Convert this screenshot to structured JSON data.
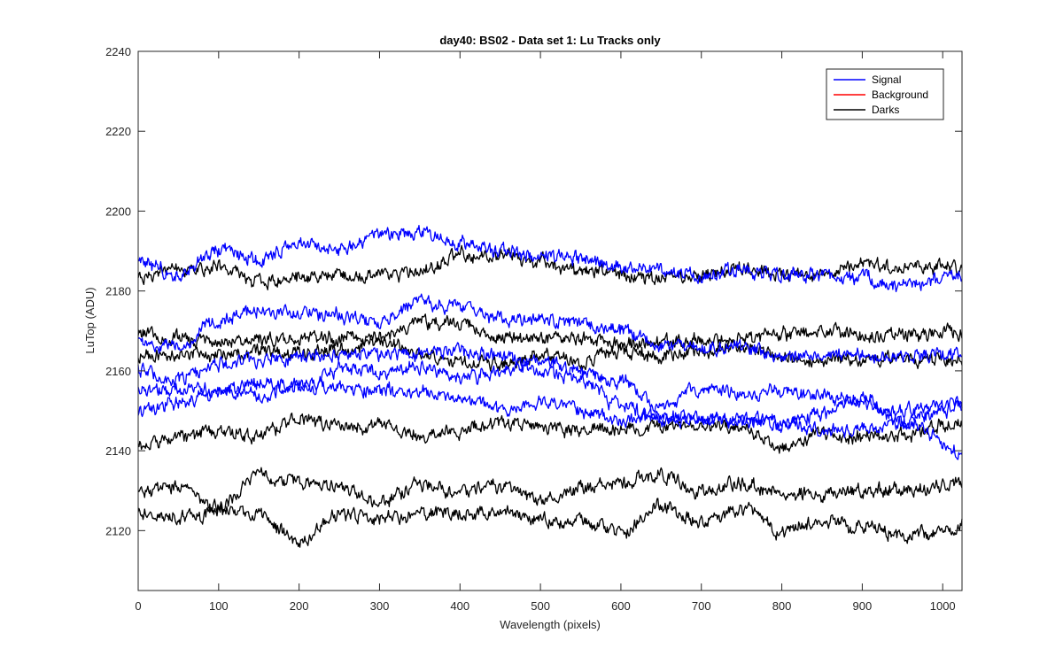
{
  "chart_data": {
    "type": "line",
    "title": "day40: BS02 - Data set 1: Lu Tracks only",
    "xlabel": "Wavelength (pixels)",
    "ylabel": "LuTop (ADU)",
    "xlim": [
      0,
      1024
    ],
    "ylim": [
      2105,
      2240
    ],
    "x_ticks": [
      0,
      100,
      200,
      300,
      400,
      500,
      600,
      700,
      800,
      900,
      1000
    ],
    "y_ticks": [
      2120,
      2140,
      2160,
      2180,
      2200,
      2220,
      2240
    ],
    "grid": false,
    "legend": {
      "placement": "top-right",
      "entries": [
        "Signal",
        "Background",
        "Darks"
      ]
    },
    "colors": {
      "Signal": "#0000ff",
      "Background": "#ff0000",
      "Darks": "#000000"
    },
    "x": [
      0,
      50,
      100,
      150,
      200,
      250,
      300,
      350,
      400,
      450,
      500,
      550,
      600,
      650,
      700,
      750,
      800,
      850,
      900,
      950,
      1024
    ],
    "series": [
      {
        "name": "Signal",
        "values": [
          2187,
          2184,
          2190,
          2188,
          2192,
          2190,
          2194,
          2195,
          2192,
          2190,
          2189,
          2188,
          2186,
          2185,
          2184,
          2185,
          2184,
          2184,
          2183,
          2181,
          2184
        ]
      },
      {
        "name": "Signal",
        "values": [
          2167,
          2166,
          2173,
          2175,
          2174,
          2174,
          2172,
          2177,
          2176,
          2173,
          2173,
          2172,
          2170,
          2166,
          2166,
          2166,
          2163,
          2164,
          2164,
          2164,
          2164
        ]
      },
      {
        "name": "Signal",
        "values": [
          2160,
          2158,
          2162,
          2163,
          2163,
          2164,
          2164,
          2164,
          2165,
          2164,
          2160,
          2158,
          2151,
          2148,
          2148,
          2148,
          2147,
          2145,
          2145,
          2147,
          2151
        ]
      },
      {
        "name": "Signal",
        "values": [
          2155,
          2155,
          2155,
          2157,
          2156,
          2160,
          2160,
          2161,
          2158,
          2160,
          2163,
          2160,
          2157,
          2151,
          2156,
          2154,
          2155,
          2154,
          2152,
          2150,
          2152
        ]
      },
      {
        "name": "Signal",
        "values": [
          2150,
          2152,
          2155,
          2154,
          2156,
          2156,
          2155,
          2155,
          2153,
          2150,
          2152,
          2150,
          2148,
          2148,
          2148,
          2148,
          2146,
          2150,
          2153,
          2147,
          2140
        ]
      },
      {
        "name": "Darks",
        "values": [
          2184,
          2185,
          2186,
          2182,
          2183,
          2184,
          2184,
          2185,
          2189,
          2189,
          2187,
          2185,
          2184,
          2183,
          2184,
          2186,
          2184,
          2184,
          2187,
          2186,
          2186
        ]
      },
      {
        "name": "Darks",
        "values": [
          2170,
          2168,
          2167,
          2168,
          2168,
          2168,
          2168,
          2172,
          2172,
          2168,
          2168,
          2168,
          2167,
          2167,
          2168,
          2168,
          2169,
          2170,
          2169,
          2169,
          2170
        ]
      },
      {
        "name": "Darks",
        "values": [
          2164,
          2164,
          2164,
          2165,
          2164,
          2165,
          2168,
          2164,
          2162,
          2162,
          2164,
          2162,
          2165,
          2164,
          2165,
          2166,
          2164,
          2162,
          2163,
          2163,
          2163
        ]
      },
      {
        "name": "Darks",
        "values": [
          2142,
          2143,
          2145,
          2144,
          2148,
          2146,
          2146,
          2144,
          2145,
          2147,
          2146,
          2145,
          2146,
          2146,
          2146,
          2146,
          2141,
          2144,
          2143,
          2144,
          2147
        ]
      },
      {
        "name": "Darks",
        "values": [
          2130,
          2131,
          2126,
          2134,
          2132,
          2131,
          2127,
          2132,
          2130,
          2131,
          2128,
          2130,
          2132,
          2134,
          2129,
          2132,
          2129,
          2129,
          2130,
          2130,
          2132
        ]
      },
      {
        "name": "Darks",
        "values": [
          2125,
          2123,
          2125,
          2124,
          2117,
          2124,
          2123,
          2124,
          2124,
          2125,
          2123,
          2122,
          2120,
          2126,
          2122,
          2125,
          2120,
          2122,
          2121,
          2119,
          2121
        ]
      }
    ]
  }
}
